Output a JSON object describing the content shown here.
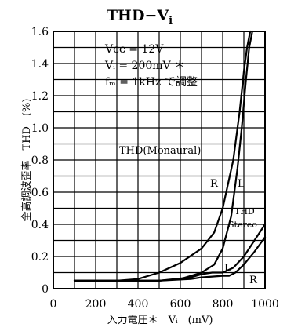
{
  "chart_data": {
    "type": "line",
    "title": "THD−V",
    "title_sub": "i",
    "xlabel": "入力電圧＊　Vᵢ　(mV)",
    "ylabel": "全高調波歪率　THD　(%)",
    "xlim": [
      0,
      1000
    ],
    "ylim": [
      0,
      1.6
    ],
    "xticks": [
      "0",
      "200",
      "400",
      "600",
      "800",
      "1000"
    ],
    "yticks": [
      "0",
      "0.2",
      "0.4",
      "0.6",
      "0.8",
      "1.0",
      "1.2",
      "1.4",
      "1.6"
    ],
    "grid": true,
    "conditions": [
      "Vᴄᴄ = 12V",
      "Vᵢ = 200mV ＊",
      "fₘ = 1kHz で調整"
    ],
    "annotations": {
      "mono_label": "THD(Monaural)",
      "stereo_label_1": "THD",
      "stereo_label_2": "Stereo",
      "mono_R": "R",
      "mono_L": "L",
      "stereo_L": "L",
      "stereo_R": "R"
    },
    "series": [
      {
        "x": [
          100,
          300,
          400,
          500,
          600,
          700,
          760,
          800,
          850,
          880,
          900,
          915,
          930
        ],
        "y": [
          0.05,
          0.05,
          0.06,
          0.1,
          0.16,
          0.25,
          0.35,
          0.5,
          0.8,
          1.1,
          1.35,
          1.5,
          1.6
        ]
      },
      {
        "x": [
          100,
          500,
          600,
          700,
          760,
          800,
          840,
          870,
          890,
          910,
          925,
          940
        ],
        "y": [
          0.05,
          0.05,
          0.06,
          0.1,
          0.15,
          0.25,
          0.45,
          0.75,
          1.0,
          1.3,
          1.5,
          1.6
        ]
      },
      {
        "x": [
          100,
          500,
          650,
          700,
          750,
          800,
          850,
          900,
          950,
          1000
        ],
        "y": [
          0.05,
          0.05,
          0.07,
          0.09,
          0.1,
          0.1,
          0.13,
          0.2,
          0.3,
          0.4
        ]
      },
      {
        "x": [
          100,
          500,
          650,
          700,
          750,
          800,
          830,
          860,
          900,
          950,
          1000
        ],
        "y": [
          0.05,
          0.05,
          0.06,
          0.07,
          0.075,
          0.08,
          0.08,
          0.1,
          0.15,
          0.23,
          0.32
        ]
      }
    ]
  }
}
